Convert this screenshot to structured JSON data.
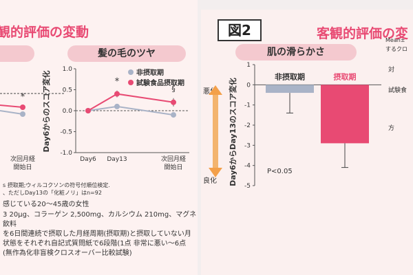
{
  "left_panel": {
    "title": "観的評価の変動",
    "hair_chart_title": "髪の毛のツヤ",
    "legend": [
      {
        "label": "非摂取期",
        "color": "#a9b3c7"
      },
      {
        "label": "試験食品摂取期",
        "color": "#e84a73"
      }
    ],
    "left_partial_xtick": "次回月経\n開始日",
    "footnotes": [
      "s 摂取期;ウィルコクソンの符号付順位検定.",
      "、ただしDay13の「化粧ノリ」はn=92",
      "感じている20～45歳の女性",
      "3 20μg、コラーゲン 2,500mg、カルシウム 210mg、マグネ",
      "飲料",
      "を6日間連続で摂取した月経周期(摂取期)と摂取していない月",
      "状態をそれぞれ自記式質問紙で6段階(1点 非常に悪い～6点",
      "(無作為化非盲検クロスオーバー比較試験)"
    ]
  },
  "right_panel": {
    "fig_label": "図2",
    "title": "客観的評価の変",
    "chart_title": "肌の滑らかさ",
    "side_notes": [
      "Mean±",
      "するクロ",
      "対",
      "試験食",
      "方"
    ],
    "arrow_top_label": "悪化",
    "arrow_bottom_label": "良化"
  },
  "chart_data": [
    {
      "type": "line",
      "title": "髪の毛のツヤ",
      "xlabel": "",
      "ylabel": "Day6からのスコア変化",
      "categories": [
        "Day6",
        "Day13",
        "次回月経\n開始日"
      ],
      "ylim": [
        -1.0,
        1.0
      ],
      "yticks": [
        "1.0",
        "0.5",
        "0.0",
        "-0.5",
        "-1.0"
      ],
      "series": [
        {
          "name": "非摂取期",
          "values": [
            0.0,
            0.1,
            -0.1
          ],
          "color": "#a9b3c7"
        },
        {
          "name": "試験食品摂取期",
          "values": [
            0.0,
            0.4,
            0.2
          ],
          "color": "#e84a73"
        }
      ],
      "annotations": [
        "*",
        "§"
      ]
    },
    {
      "type": "bar",
      "title": "肌の滑らかさ",
      "ylabel": "Day6からDay13のスコア変化",
      "categories": [
        "非摂取期",
        "摂取期"
      ],
      "values": [
        -0.4,
        -2.9
      ],
      "errors": [
        1.0,
        1.2
      ],
      "colors": [
        "#a9b3c7",
        "#e84a73"
      ],
      "ylim": [
        -5,
        1
      ],
      "yticks": [
        "1",
        "0",
        "-1",
        "-2",
        "-3",
        "-4",
        "-5"
      ],
      "annotation": "P<0.05"
    }
  ]
}
